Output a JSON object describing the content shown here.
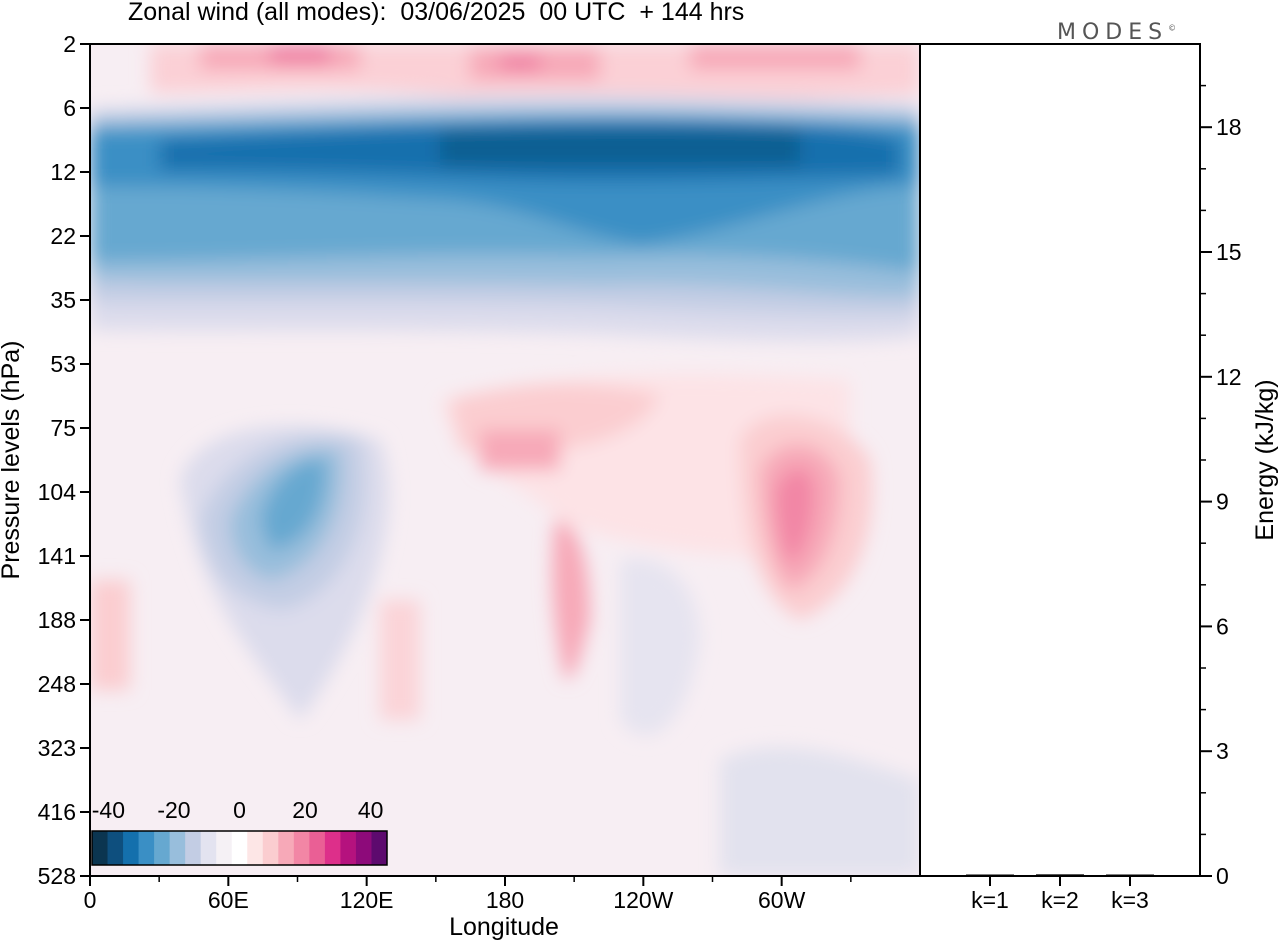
{
  "header": {
    "title": "Zonal wind (all modes):  03/06/2025  00 UTC  + 144 hrs",
    "logo": "MODES",
    "logo_mark": "©"
  },
  "chart_data": [
    {
      "type": "heatmap",
      "xlabel": "Longitude",
      "ylabel": "Pressure levels (hPa)",
      "x_ticks": [
        "0",
        "60E",
        "120E",
        "180",
        "120W",
        "60W"
      ],
      "x_tick_values_deg_east": [
        0,
        60,
        120,
        180,
        240,
        300
      ],
      "xlim_deg_east": [
        0,
        360
      ],
      "y_ticks": [
        "2",
        "6",
        "12",
        "22",
        "35",
        "53",
        "75",
        "104",
        "141",
        "188",
        "248",
        "323",
        "416",
        "528"
      ],
      "y_axis": "top-to-bottom increasing pressure",
      "colorbar": {
        "labels": [
          "-40",
          "-20",
          "0",
          "20",
          "40"
        ],
        "label_values": [
          -40,
          -20,
          0,
          20,
          40
        ],
        "range": [
          -45,
          45
        ],
        "step": 5,
        "placement": "bottom-left",
        "colors": [
          "#0b3550",
          "#0e4f7e",
          "#1470ad",
          "#3a8fc5",
          "#66a8d0",
          "#98bedc",
          "#c3cde4",
          "#e3e3f0",
          "#f5f1f5",
          "#ffffff",
          "#fde6e6",
          "#fbcdd0",
          "#f7a9b8",
          "#f286a5",
          "#ea5f95",
          "#dd2f8a",
          "#b5127e",
          "#8d0a7a",
          "#5d0a6e"
        ]
      },
      "features": [
        {
          "kind": "easterly",
          "strength": -25,
          "lon": [
            0,
            360
          ],
          "levels": [
            "8",
            "30"
          ]
        },
        {
          "kind": "easterly",
          "strength": -35,
          "lon": [
            180,
            300
          ],
          "levels": [
            "9",
            "14"
          ]
        },
        {
          "kind": "westerly",
          "strength": 15,
          "lon": [
            60,
            280
          ],
          "levels": [
            "2",
            "4"
          ]
        },
        {
          "kind": "easterly",
          "strength": -20,
          "lon": [
            70,
            110
          ],
          "levels": [
            "90",
            "160"
          ]
        },
        {
          "kind": "westerly",
          "strength": 20,
          "lon": [
            290,
            325
          ],
          "levels": [
            "90",
            "150"
          ]
        },
        {
          "kind": "westerly",
          "strength": 10,
          "lon": [
            200,
            220
          ],
          "levels": [
            "120",
            "260"
          ]
        }
      ]
    },
    {
      "type": "bar",
      "categories": [
        "k=1",
        "k=2",
        "k=3"
      ],
      "values": [
        0.03,
        0.04,
        0.01
      ],
      "ylabel": "Energy (kJ/kg)",
      "ylim": [
        0,
        20
      ],
      "y_ticks": [
        "0",
        "3",
        "6",
        "9",
        "12",
        "15",
        "18"
      ],
      "y_tick_values": [
        0,
        3,
        6,
        9,
        12,
        15,
        18
      ]
    }
  ]
}
